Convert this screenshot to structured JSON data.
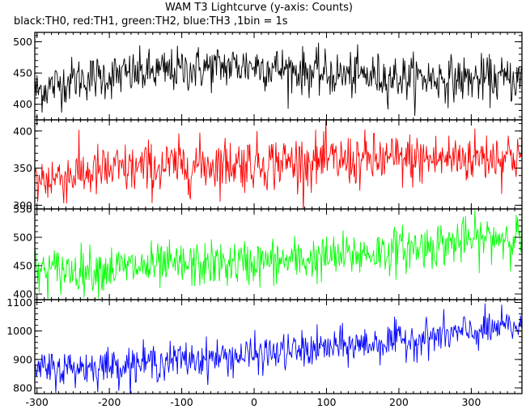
{
  "chart_data": {
    "type": "line",
    "title": "WAM T3 Lightcurve (y-axis: Counts)",
    "subtitle": "black:TH0, red:TH1, green:TH2, blue:TH3 ,1bin = 1s",
    "xlabel": "",
    "xlim": [
      -303,
      370
    ],
    "x_ticks": [
      -300,
      -200,
      -100,
      0,
      100,
      200,
      300
    ],
    "x_tick_labels": [
      "-300",
      "-200",
      "-100",
      "0",
      "100",
      "200",
      "300"
    ],
    "x_minor_step": 10,
    "bin_size": 1,
    "grid": false,
    "series": [
      {
        "name": "TH0",
        "color": "#000000",
        "ylim": [
          375,
          515
        ],
        "y_ticks": [
          400,
          450,
          500
        ],
        "y_tick_labels": [
          "400",
          "450",
          "500"
        ],
        "y_minor_step": 10,
        "trend_x": [
          -303,
          -250,
          -150,
          -100,
          -50,
          0,
          50,
          100,
          200,
          300,
          370
        ],
        "trend_y": [
          420,
          440,
          450,
          455,
          460,
          462,
          455,
          448,
          443,
          440,
          440
        ],
        "noise_sd": 18
      },
      {
        "name": "TH1",
        "color": "#ff0000",
        "ylim": [
          295,
          415
        ],
        "y_ticks": [
          300,
          350,
          400
        ],
        "y_tick_labels": [
          "300",
          "350",
          "400"
        ],
        "y_minor_step": 10,
        "trend_x": [
          -303,
          -250,
          -150,
          -50,
          50,
          150,
          250,
          370
        ],
        "trend_y": [
          332,
          342,
          350,
          356,
          358,
          360,
          362,
          368
        ],
        "noise_sd": 18
      },
      {
        "name": "TH2",
        "color": "#00ff00",
        "ylim": [
          390,
          550
        ],
        "y_ticks": [
          400,
          450,
          500,
          550
        ],
        "y_tick_labels": [
          "400",
          "450",
          "500",
          "550"
        ],
        "y_minor_step": 10,
        "trend_x": [
          -303,
          -200,
          -100,
          0,
          100,
          200,
          300,
          370
        ],
        "trend_y": [
          440,
          445,
          450,
          455,
          463,
          478,
          495,
          505
        ],
        "noise_sd": 20
      },
      {
        "name": "TH3",
        "color": "#0000ff",
        "ylim": [
          780,
          1110
        ],
        "y_ticks": [
          800,
          900,
          1000,
          1100
        ],
        "y_tick_labels": [
          "800",
          "900",
          "1000",
          "1100"
        ],
        "y_minor_step": 20,
        "trend_x": [
          -303,
          -200,
          -100,
          0,
          100,
          200,
          300,
          370
        ],
        "trend_y": [
          862,
          878,
          898,
          915,
          940,
          965,
          995,
          1020
        ],
        "noise_sd": 32
      }
    ]
  }
}
